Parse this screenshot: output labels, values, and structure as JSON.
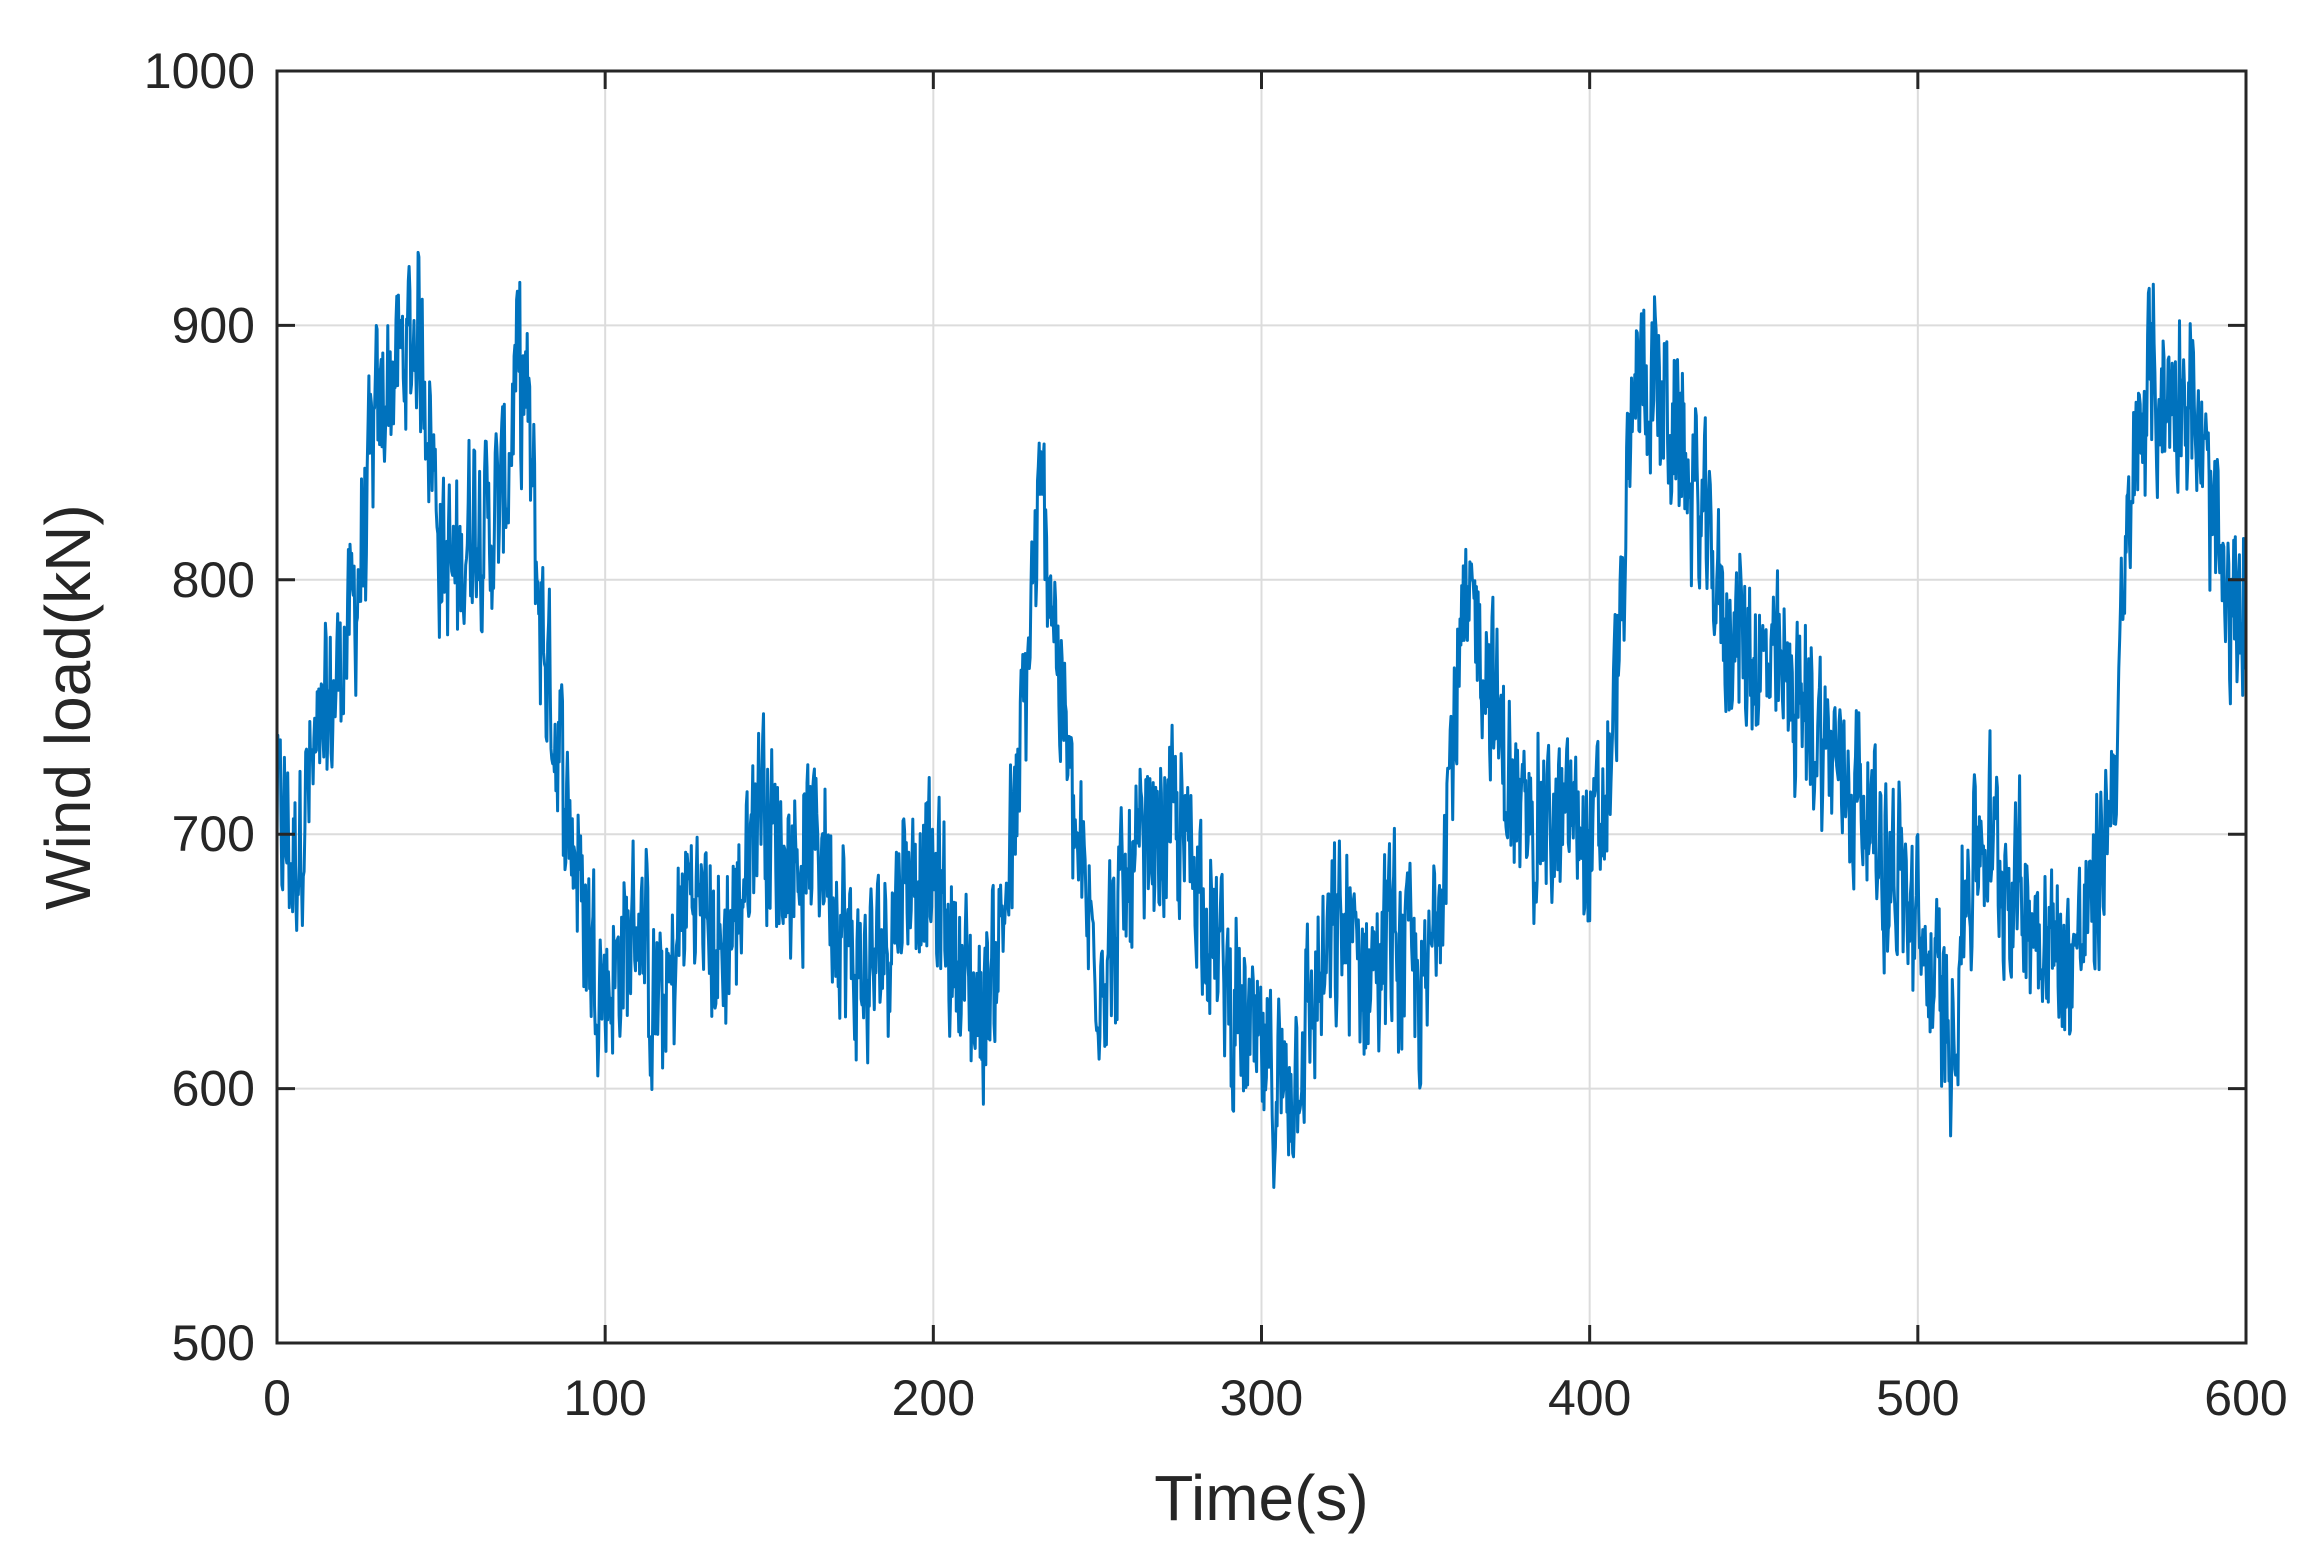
{
  "chart_data": {
    "type": "line",
    "title": "",
    "xlabel": "Time(s)",
    "ylabel": "Wind load(kN)",
    "xlim": [
      0,
      600
    ],
    "ylim": [
      500,
      1000
    ],
    "xticks": [
      "0",
      "100",
      "200",
      "300",
      "400",
      "500",
      "600"
    ],
    "yticks": [
      "500",
      "600",
      "700",
      "800",
      "900",
      "1000"
    ],
    "grid": true,
    "line_color": "#0072BD",
    "series": [
      {
        "x": [
          0,
          5,
          10,
          15,
          20,
          25,
          30,
          35,
          40,
          43,
          46,
          50,
          55,
          60,
          65,
          70,
          73,
          76,
          80,
          85,
          90,
          95,
          100,
          105,
          110,
          115,
          120,
          125,
          130,
          135,
          140,
          145,
          148,
          150,
          155,
          160,
          165,
          170,
          175,
          180,
          185,
          190,
          195,
          200,
          205,
          210,
          215,
          220,
          225,
          230,
          233,
          236,
          240,
          245,
          250,
          255,
          260,
          265,
          270,
          275,
          280,
          285,
          290,
          295,
          300,
          305,
          310,
          315,
          320,
          325,
          330,
          335,
          340,
          345,
          350,
          355,
          360,
          365,
          370,
          375,
          380,
          385,
          390,
          395,
          400,
          405,
          410,
          414,
          418,
          422,
          426,
          430,
          435,
          440,
          445,
          450,
          455,
          460,
          465,
          470,
          475,
          480,
          485,
          490,
          495,
          500,
          505,
          510,
          515,
          520,
          525,
          530,
          535,
          540,
          545,
          550,
          555,
          560,
          565,
          570,
          575,
          580,
          585,
          590,
          595,
          600
        ],
        "values": [
          710,
          690,
          720,
          740,
          770,
          800,
          860,
          880,
          890,
          900,
          870,
          810,
          800,
          830,
          820,
          840,
          880,
          870,
          790,
          740,
          700,
          660,
          640,
          650,
          670,
          630,
          640,
          680,
          670,
          650,
          670,
          700,
          730,
          700,
          690,
          690,
          700,
          680,
          650,
          640,
          660,
          680,
          690,
          680,
          660,
          640,
          630,
          660,
          700,
          790,
          830,
          800,
          740,
          680,
          650,
          660,
          680,
          690,
          700,
          700,
          690,
          660,
          640,
          620,
          610,
          600,
          610,
          630,
          650,
          660,
          650,
          650,
          660,
          650,
          630,
          700,
          760,
          790,
          760,
          720,
          700,
          710,
          700,
          710,
          690,
          710,
          790,
          880,
          880,
          870,
          860,
          840,
          820,
          790,
          780,
          770,
          760,
          760,
          750,
          740,
          730,
          720,
          710,
          690,
          680,
          660,
          640,
          620,
          680,
          700,
          690,
          680,
          670,
          660,
          650,
          660,
          680,
          730,
          830,
          880,
          870,
          880,
          860,
          820,
          780,
          790
        ]
      }
    ]
  }
}
